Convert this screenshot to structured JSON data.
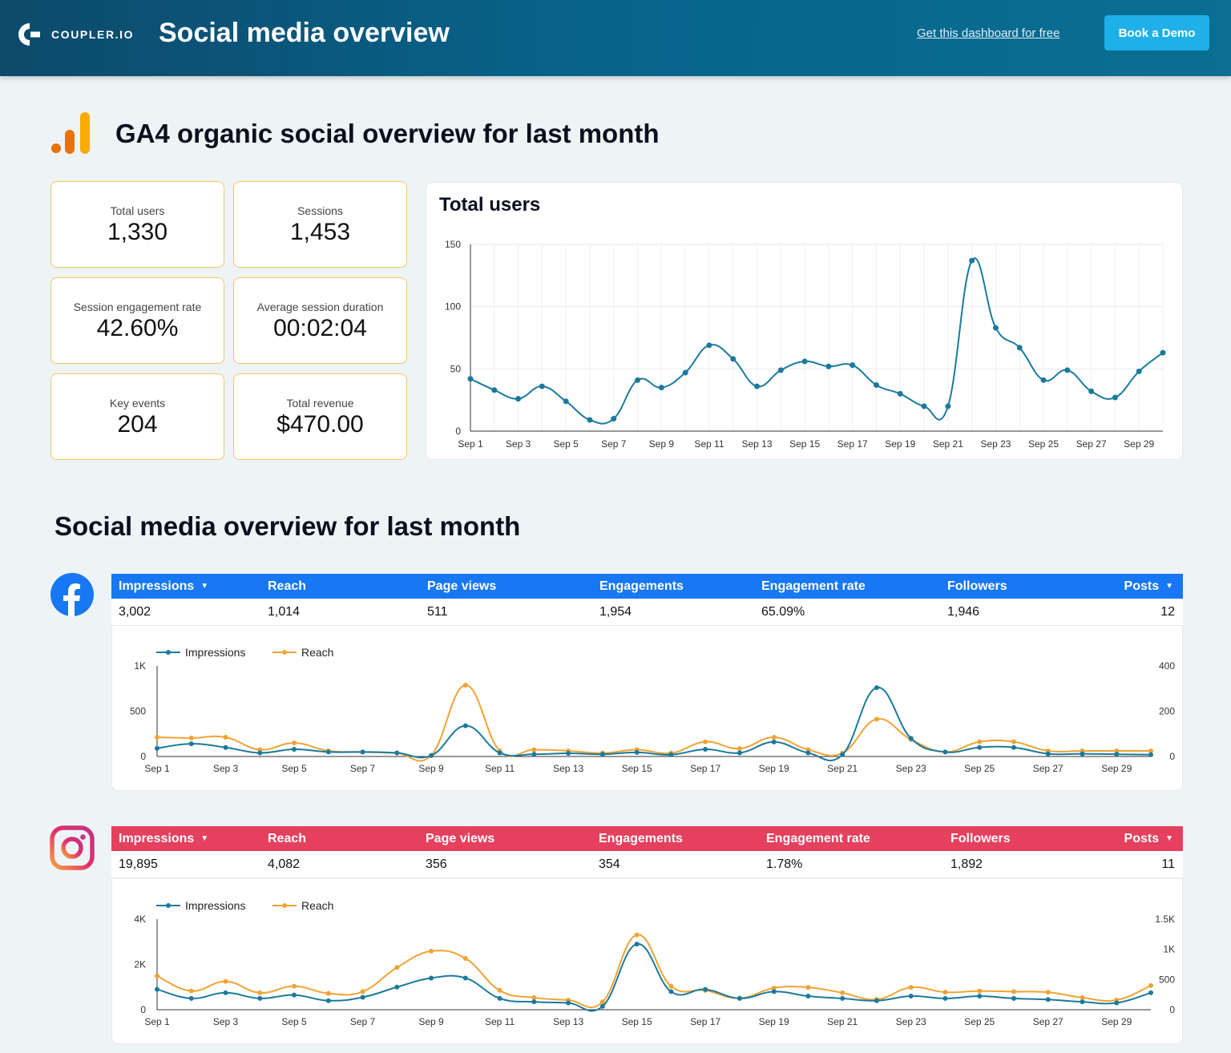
{
  "header": {
    "logo_text": "COUPLER.IO",
    "title": "Social media overview",
    "free_link": "Get this dashboard for free",
    "demo_button": "Book a Demo"
  },
  "ga_section": {
    "title": "GA4 organic social overview for last month",
    "kpis": [
      {
        "label": "Total users",
        "value": "1,330"
      },
      {
        "label": "Sessions",
        "value": "1,453"
      },
      {
        "label": "Session engagement rate",
        "value": "42.60%"
      },
      {
        "label": "Average session duration",
        "value": "00:02:04"
      },
      {
        "label": "Key events",
        "value": "204"
      },
      {
        "label": "Total revenue",
        "value": "$470.00"
      }
    ]
  },
  "social_section": {
    "title": "Social media overview for last month"
  },
  "colors": {
    "accent_orange": "#f6c56a",
    "facebook_blue": "#1877f2",
    "instagram_red": "#e5405e",
    "series_teal": "#1a7a9c",
    "series_orange": "#f0a333"
  },
  "chart_data": [
    {
      "id": "ga_users",
      "type": "line",
      "title": "Total users",
      "x": [
        "Sep 1",
        "Sep 2",
        "Sep 3",
        "Sep 4",
        "Sep 5",
        "Sep 6",
        "Sep 7",
        "Sep 8",
        "Sep 9",
        "Sep 10",
        "Sep 11",
        "Sep 12",
        "Sep 13",
        "Sep 14",
        "Sep 15",
        "Sep 16",
        "Sep 17",
        "Sep 18",
        "Sep 19",
        "Sep 20",
        "Sep 21",
        "Sep 22",
        "Sep 23",
        "Sep 24",
        "Sep 25",
        "Sep 26",
        "Sep 27",
        "Sep 28",
        "Sep 29",
        "Sep 30"
      ],
      "xticks": [
        "Sep 1",
        "Sep 3",
        "Sep 5",
        "Sep 7",
        "Sep 9",
        "Sep 11",
        "Sep 13",
        "Sep 15",
        "Sep 17",
        "Sep 19",
        "Sep 21",
        "Sep 23",
        "Sep 25",
        "Sep 27",
        "Sep 29"
      ],
      "yticks": [
        "0",
        "50",
        "100",
        "150"
      ],
      "ylim": [
        0,
        150
      ],
      "grid": true,
      "series": [
        {
          "values": [
            42,
            33,
            26,
            36,
            24,
            9,
            10,
            41,
            35,
            47,
            69,
            58,
            36,
            49,
            56,
            52,
            53,
            37,
            30,
            20,
            20,
            137,
            83,
            67,
            41,
            49,
            32,
            27,
            48,
            63
          ]
        }
      ]
    },
    {
      "id": "facebook",
      "type": "line",
      "x": [
        "Sep 1",
        "Sep 2",
        "Sep 3",
        "Sep 4",
        "Sep 5",
        "Sep 6",
        "Sep 7",
        "Sep 8",
        "Sep 9",
        "Sep 10",
        "Sep 11",
        "Sep 12",
        "Sep 13",
        "Sep 14",
        "Sep 15",
        "Sep 16",
        "Sep 17",
        "Sep 18",
        "Sep 19",
        "Sep 20",
        "Sep 21",
        "Sep 22",
        "Sep 23",
        "Sep 24",
        "Sep 25",
        "Sep 26",
        "Sep 27",
        "Sep 28",
        "Sep 29",
        "Sep 30"
      ],
      "xticks": [
        "Sep 1",
        "Sep 3",
        "Sep 5",
        "Sep 7",
        "Sep 9",
        "Sep 11",
        "Sep 13",
        "Sep 15",
        "Sep 17",
        "Sep 19",
        "Sep 21",
        "Sep 23",
        "Sep 25",
        "Sep 27",
        "Sep 29"
      ],
      "y_left_ticks": [
        "0",
        "500",
        "1K"
      ],
      "y_right_ticks": [
        "0",
        "200",
        "400"
      ],
      "ylim_left": [
        0,
        1000
      ],
      "ylim_right": [
        0,
        400
      ],
      "legend": "top-left",
      "series": [
        {
          "name": "Impressions",
          "axis": "left",
          "values": [
            90,
            140,
            100,
            40,
            80,
            50,
            50,
            40,
            10,
            340,
            40,
            25,
            35,
            25,
            45,
            20,
            80,
            40,
            160,
            40,
            20,
            760,
            200,
            50,
            100,
            100,
            30,
            30,
            25,
            20
          ]
        },
        {
          "name": "Reach",
          "axis": "right",
          "values": [
            85,
            82,
            85,
            30,
            60,
            25,
            20,
            15,
            5,
            315,
            25,
            30,
            25,
            15,
            30,
            15,
            65,
            35,
            85,
            30,
            15,
            165,
            75,
            20,
            65,
            65,
            25,
            25,
            25,
            25
          ]
        }
      ]
    },
    {
      "id": "instagram",
      "type": "line",
      "x": [
        "Sep 1",
        "Sep 2",
        "Sep 3",
        "Sep 4",
        "Sep 5",
        "Sep 6",
        "Sep 7",
        "Sep 8",
        "Sep 9",
        "Sep 10",
        "Sep 11",
        "Sep 12",
        "Sep 13",
        "Sep 14",
        "Sep 15",
        "Sep 16",
        "Sep 17",
        "Sep 18",
        "Sep 19",
        "Sep 20",
        "Sep 21",
        "Sep 22",
        "Sep 23",
        "Sep 24",
        "Sep 25",
        "Sep 26",
        "Sep 27",
        "Sep 28",
        "Sep 29",
        "Sep 30"
      ],
      "xticks": [
        "Sep 1",
        "Sep 3",
        "Sep 5",
        "Sep 7",
        "Sep 9",
        "Sep 11",
        "Sep 13",
        "Sep 15",
        "Sep 17",
        "Sep 19",
        "Sep 21",
        "Sep 23",
        "Sep 25",
        "Sep 27",
        "Sep 29"
      ],
      "y_left_ticks": [
        "0",
        "2K",
        "4K"
      ],
      "y_right_ticks": [
        "0",
        "500",
        "1K",
        "1.5K"
      ],
      "ylim_left": [
        0,
        4000
      ],
      "ylim_right": [
        0,
        1500
      ],
      "legend": "top-left",
      "series": [
        {
          "name": "Impressions",
          "axis": "left",
          "values": [
            900,
            500,
            750,
            500,
            650,
            400,
            550,
            1000,
            1400,
            1400,
            500,
            350,
            300,
            150,
            2900,
            800,
            900,
            500,
            800,
            600,
            500,
            400,
            600,
            500,
            600,
            500,
            450,
            350,
            300,
            750
          ]
        },
        {
          "name": "Reach",
          "axis": "right",
          "values": [
            560,
            310,
            470,
            280,
            390,
            270,
            300,
            700,
            970,
            850,
            320,
            200,
            160,
            130,
            1240,
            390,
            320,
            190,
            360,
            370,
            280,
            170,
            370,
            290,
            310,
            300,
            290,
            200,
            160,
            400
          ]
        }
      ]
    }
  ],
  "facebook_table": {
    "headers": [
      {
        "label": "Impressions",
        "arrow": "▼"
      },
      {
        "label": "Reach"
      },
      {
        "label": "Page views"
      },
      {
        "label": "Engagements"
      },
      {
        "label": "Engagement rate"
      },
      {
        "label": "Followers"
      },
      {
        "label": "Posts",
        "arrow": "▼"
      }
    ],
    "values": [
      "3,002",
      "1,014",
      "511",
      "1,954",
      "65.09%",
      "1,946",
      "12"
    ]
  },
  "instagram_table": {
    "headers": [
      {
        "label": "Impressions",
        "arrow": "▼"
      },
      {
        "label": "Reach"
      },
      {
        "label": "Page views"
      },
      {
        "label": "Engagements"
      },
      {
        "label": "Engagement rate"
      },
      {
        "label": "Followers"
      },
      {
        "label": "Posts",
        "arrow": "▼"
      }
    ],
    "values": [
      "19,895",
      "4,082",
      "356",
      "354",
      "1.78%",
      "1,892",
      "11"
    ]
  }
}
